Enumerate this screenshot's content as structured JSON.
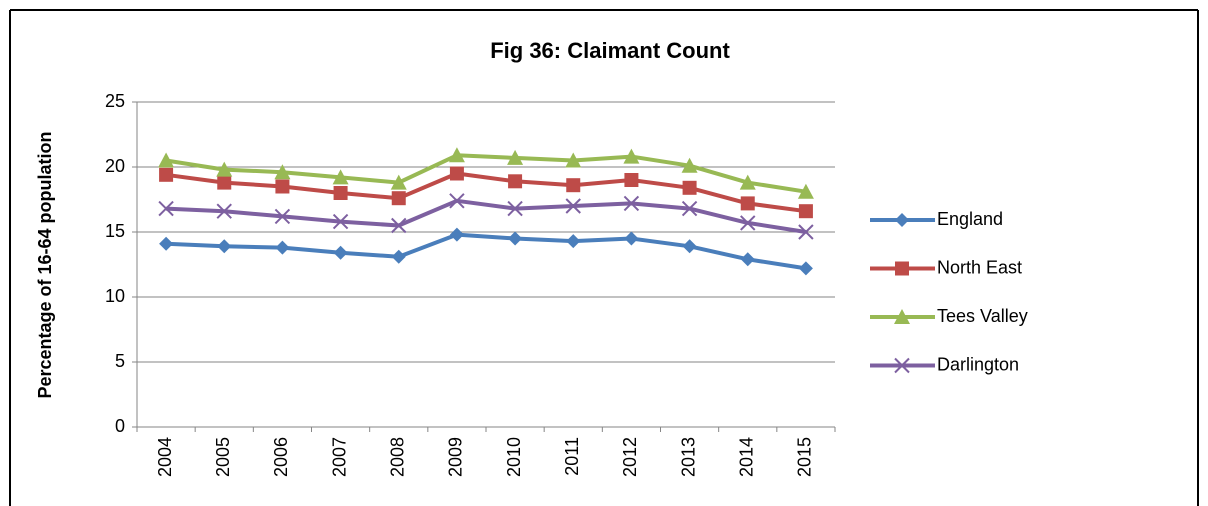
{
  "chart_data": {
    "type": "line",
    "title": "Fig 36: Claimant Count",
    "y_label": "Percentage of 16-64 population",
    "categories": [
      "2004",
      "2005",
      "2006",
      "2007",
      "2008",
      "2009",
      "2010",
      "2011",
      "2012",
      "2013",
      "2014",
      "2015"
    ],
    "series": [
      {
        "name": "England",
        "color": "#4a7ebb",
        "marker": "diamond",
        "values": [
          14.1,
          13.9,
          13.8,
          13.4,
          13.1,
          14.8,
          14.5,
          14.3,
          14.5,
          13.9,
          12.9,
          12.2
        ]
      },
      {
        "name": "North East",
        "color": "#be4b48",
        "marker": "square",
        "values": [
          19.4,
          18.8,
          18.5,
          18.0,
          17.6,
          19.5,
          18.9,
          18.6,
          19.0,
          18.4,
          17.2,
          16.6
        ]
      },
      {
        "name": "Tees Valley",
        "color": "#98b954",
        "marker": "triangle",
        "values": [
          20.5,
          19.8,
          19.6,
          19.2,
          18.8,
          20.9,
          20.7,
          20.5,
          20.8,
          20.1,
          18.8,
          18.1
        ]
      },
      {
        "name": "Darlington",
        "color": "#7d60a0",
        "marker": "x",
        "values": [
          16.8,
          16.6,
          16.2,
          15.8,
          15.5,
          17.4,
          16.8,
          17.0,
          17.2,
          16.8,
          15.7,
          15.0
        ]
      }
    ],
    "ylim": [
      0,
      25
    ],
    "yticks": [
      0,
      5,
      10,
      15,
      20,
      25
    ],
    "grid": true,
    "legend": "right"
  }
}
